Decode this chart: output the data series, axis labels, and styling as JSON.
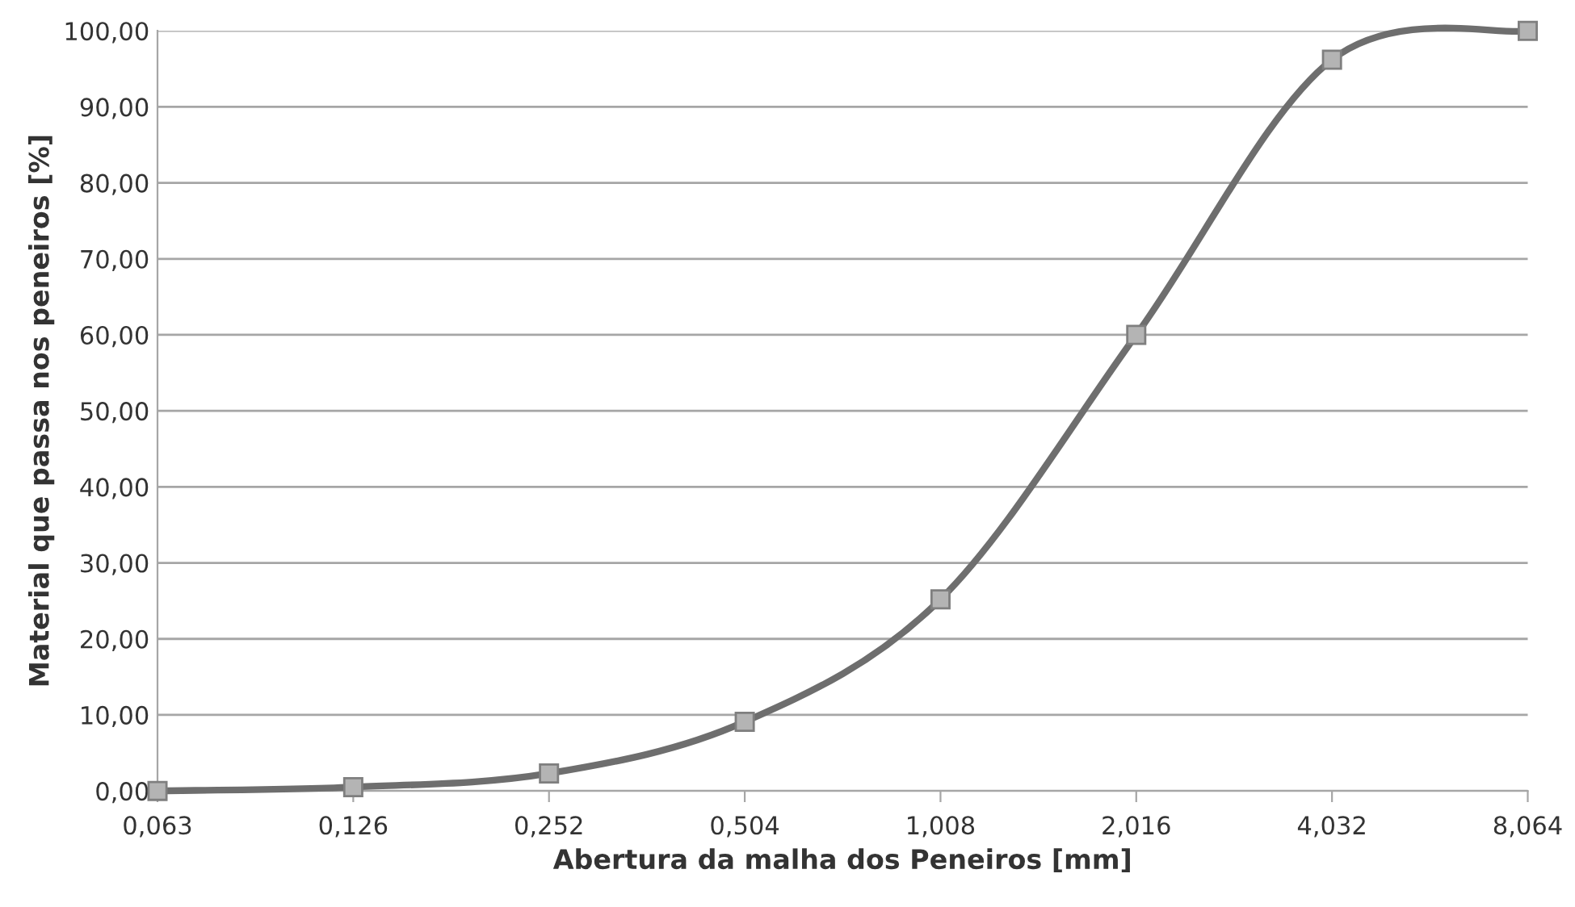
{
  "chart_data": {
    "type": "line",
    "xlabel": "Abertura da malha dos Peneiros [mm]",
    "ylabel": "Material que passa nos peneiros [%]",
    "categories": [
      "0,063",
      "0,126",
      "0,252",
      "0,504",
      "1,008",
      "2,016",
      "4,032",
      "8,064"
    ],
    "series": [
      {
        "color": "#6e6e6e",
        "values": [
          0,
          0.5,
          2.3,
          9.1,
          25.2,
          60,
          96.2,
          100
        ]
      }
    ],
    "ylim": [
      0,
      100
    ],
    "yticks": [
      {
        "value": 0,
        "label": "0,00"
      },
      {
        "value": 10,
        "label": "10,00"
      },
      {
        "value": 20,
        "label": "20,00"
      },
      {
        "value": 30,
        "label": "30,00"
      },
      {
        "value": 40,
        "label": "40,00"
      },
      {
        "value": 50,
        "label": "50,00"
      },
      {
        "value": 60,
        "label": "60,00"
      },
      {
        "value": 70,
        "label": "70,00"
      },
      {
        "value": 80,
        "label": "80,00"
      },
      {
        "value": 90,
        "label": "90,00"
      },
      {
        "value": 100,
        "label": "100,00"
      }
    ],
    "grid": "y",
    "marker": "square",
    "line_style": "solid",
    "legend": false
  }
}
